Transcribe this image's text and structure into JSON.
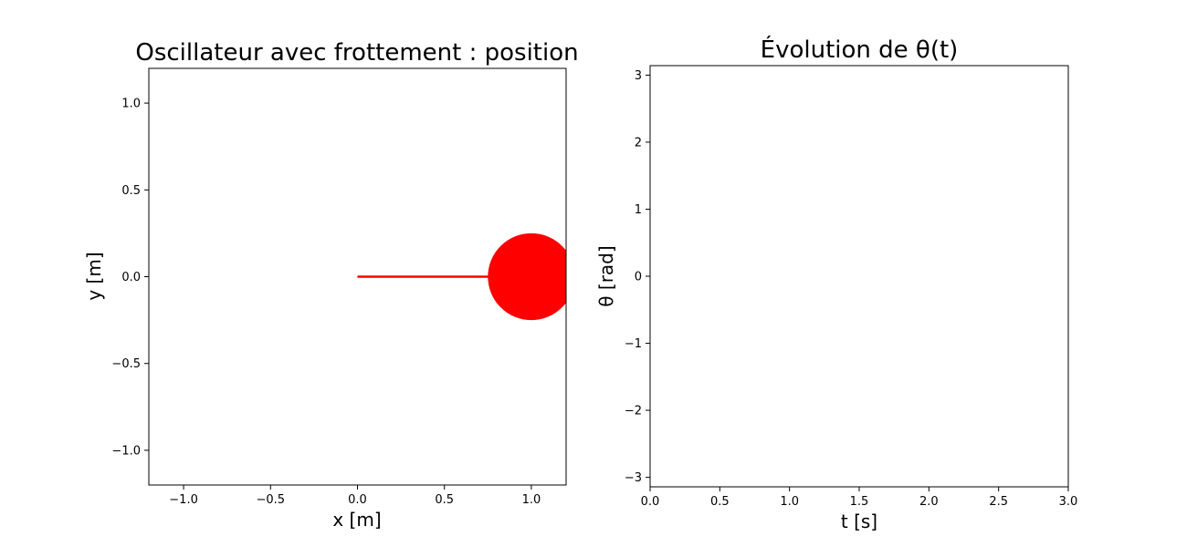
{
  "chart_data": [
    {
      "type": "scatter",
      "title": "Oscillateur avec frottement : position",
      "xlabel": "x [m]",
      "ylabel": "y [m]",
      "xlim": [
        -1.2,
        1.2
      ],
      "ylim": [
        -1.2,
        1.2
      ],
      "xticks": [
        -1.0,
        -0.5,
        0.0,
        0.5,
        1.0
      ],
      "xtick_labels": [
        "−1.0",
        "−0.5",
        "0.0",
        "0.5",
        "1.0"
      ],
      "yticks": [
        -1.0,
        -0.5,
        0.0,
        0.5,
        1.0
      ],
      "ytick_labels": [
        "−1.0",
        "−0.5",
        "0.0",
        "0.5",
        "1.0"
      ],
      "grid": false,
      "color": "#ff0000",
      "rod": {
        "from": [
          0.0,
          0.0
        ],
        "to": [
          1.0,
          0.0
        ]
      },
      "mass": {
        "x": 1.0,
        "y": 0.0,
        "radius": 0.25
      }
    },
    {
      "type": "line",
      "title": "Évolution de θ(t)",
      "xlabel": "t [s]",
      "ylabel": "θ [rad]",
      "xlim": [
        0.0,
        3.0
      ],
      "ylim": [
        -3.1416,
        3.1416
      ],
      "xticks": [
        0.0,
        0.5,
        1.0,
        1.5,
        2.0,
        2.5,
        3.0
      ],
      "xtick_labels": [
        "0.0",
        "0.5",
        "1.0",
        "1.5",
        "2.0",
        "2.5",
        "3.0"
      ],
      "yticks": [
        -3,
        -2,
        -1,
        0,
        1,
        2,
        3
      ],
      "ytick_labels": [
        "−3",
        "−2",
        "−1",
        "0",
        "1",
        "2",
        "3"
      ],
      "grid": false,
      "series": [
        {
          "x": [],
          "y": []
        }
      ]
    }
  ]
}
